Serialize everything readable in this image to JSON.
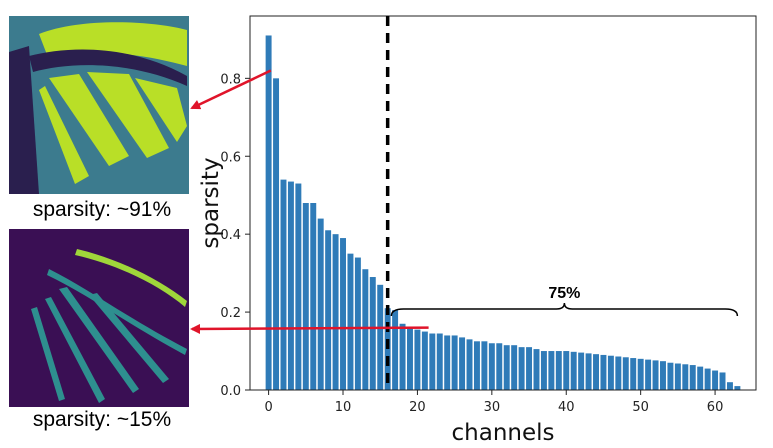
{
  "thumbnails": [
    {
      "caption": "sparsity: ~91%",
      "colormap": "viridis-bright"
    },
    {
      "caption": "sparsity: ~15%",
      "colormap": "viridis-dark"
    }
  ],
  "colors": {
    "bar": "#2f7bb8",
    "arrow": "#e0142a",
    "dashed_line": "#000000",
    "thumb_bright_bg": "#3c7b8e",
    "thumb_bright_fg": "#b9df27",
    "thumb_dark_bg": "#3a0f54",
    "thumb_dark_fg": "#2e8f8f"
  },
  "chart_data": {
    "type": "bar",
    "xlabel": "channels",
    "ylabel": "sparsity",
    "xlim": [
      -2.5,
      65.5
    ],
    "ylim": [
      0,
      0.96
    ],
    "xticks": [
      0,
      10,
      20,
      30,
      40,
      50,
      60
    ],
    "yticks": [
      0.0,
      0.2,
      0.4,
      0.6,
      0.8
    ],
    "ytick_labels": [
      "0.0",
      "0.2",
      "0.4",
      "0.6",
      "0.8"
    ],
    "x": [
      0,
      1,
      2,
      3,
      4,
      5,
      6,
      7,
      8,
      9,
      10,
      11,
      12,
      13,
      14,
      15,
      16,
      17,
      18,
      19,
      20,
      21,
      22,
      23,
      24,
      25,
      26,
      27,
      28,
      29,
      30,
      31,
      32,
      33,
      34,
      35,
      36,
      37,
      38,
      39,
      40,
      41,
      42,
      43,
      44,
      45,
      46,
      47,
      48,
      49,
      50,
      51,
      52,
      53,
      54,
      55,
      56,
      57,
      58,
      59,
      60,
      61,
      62,
      63
    ],
    "values": [
      0.91,
      0.8,
      0.54,
      0.535,
      0.53,
      0.48,
      0.48,
      0.44,
      0.41,
      0.4,
      0.39,
      0.35,
      0.34,
      0.31,
      0.29,
      0.27,
      0.21,
      0.205,
      0.17,
      0.16,
      0.155,
      0.15,
      0.145,
      0.145,
      0.14,
      0.14,
      0.135,
      0.13,
      0.125,
      0.125,
      0.12,
      0.12,
      0.115,
      0.115,
      0.11,
      0.11,
      0.105,
      0.1,
      0.1,
      0.1,
      0.1,
      0.098,
      0.096,
      0.094,
      0.092,
      0.09,
      0.088,
      0.086,
      0.084,
      0.082,
      0.08,
      0.078,
      0.076,
      0.074,
      0.07,
      0.068,
      0.066,
      0.064,
      0.06,
      0.055,
      0.05,
      0.045,
      0.02,
      0.01
    ],
    "threshold_line_x": 16,
    "bracket": {
      "label": "75%",
      "from_x": 16.5,
      "to_x": 63,
      "y": 0.19
    },
    "arrows": [
      {
        "from": [
          0.3,
          0.82
        ],
        "target": "thumbnail-0"
      },
      {
        "from": [
          21.5,
          0.16
        ],
        "target": "thumbnail-1"
      }
    ]
  }
}
